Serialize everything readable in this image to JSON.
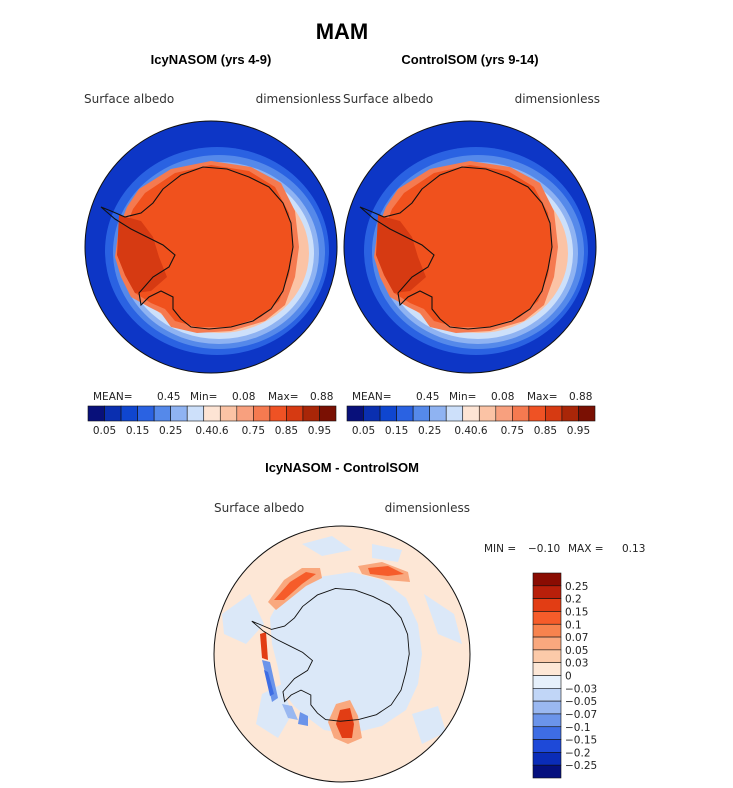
{
  "figure_title": "MAM",
  "chart_data": [
    {
      "type": "heatmap",
      "projection": "south-polar-stereographic",
      "title": "IcyNASOM (yrs 4-9)",
      "variable": "Surface albedo",
      "units": "dimensionless",
      "stats": {
        "mean_label": "MEAN=",
        "mean": "0.45",
        "min_label": "Min=",
        "min": "0.08",
        "max_label": "Max=",
        "max": "0.88"
      },
      "colorbar": {
        "orientation": "horizontal",
        "colors": [
          "#08107a",
          "#0a2fb0",
          "#0f46cf",
          "#2a62e2",
          "#5589ea",
          "#8fb3f2",
          "#cde0fa",
          "#fde4d4",
          "#fbc3a5",
          "#f8a07e",
          "#f57a50",
          "#ef5224",
          "#d63a12",
          "#a92608",
          "#7a1003"
        ],
        "tick_labels": [
          "0.05",
          "0.15",
          "0.25",
          "0.4",
          "0.6",
          "0.75",
          "0.85",
          "0.95"
        ]
      }
    },
    {
      "type": "heatmap",
      "projection": "south-polar-stereographic",
      "title": "ControlSOM (yrs 9-14)",
      "variable": "Surface albedo",
      "units": "dimensionless",
      "stats": {
        "mean_label": "MEAN=",
        "mean": "0.45",
        "min_label": "Min=",
        "min": "0.08",
        "max_label": "Max=",
        "max": "0.88"
      },
      "colorbar": {
        "orientation": "horizontal",
        "colors": [
          "#08107a",
          "#0a2fb0",
          "#0f46cf",
          "#2a62e2",
          "#5589ea",
          "#8fb3f2",
          "#cde0fa",
          "#fde4d4",
          "#fbc3a5",
          "#f8a07e",
          "#f57a50",
          "#ef5224",
          "#d63a12",
          "#a92608",
          "#7a1003"
        ],
        "tick_labels": [
          "0.05",
          "0.15",
          "0.25",
          "0.4",
          "0.6",
          "0.75",
          "0.85",
          "0.95"
        ]
      }
    },
    {
      "type": "heatmap",
      "projection": "south-polar-stereographic",
      "title": "IcyNASOM - ControlSOM",
      "variable": "Surface albedo",
      "units": "dimensionless",
      "stats": {
        "min_label": "MIN =",
        "min": "−0.10",
        "max_label": "MAX =",
        "max": "0.13"
      },
      "colorbar": {
        "orientation": "vertical",
        "colors": [
          "#8a0c02",
          "#b81f0a",
          "#e23d14",
          "#f65c2a",
          "#f7834e",
          "#f9a87e",
          "#fccaa9",
          "#fde7d6",
          "#e6f0fb",
          "#c1d6f7",
          "#9ab8f1",
          "#6b94ea",
          "#3e6de4",
          "#1e49d8",
          "#0a2cb8",
          "#05107e"
        ],
        "tick_labels": [
          "0.25",
          "0.2",
          "0.15",
          "0.1",
          "0.07",
          "0.05",
          "0.03",
          "0",
          "−0.03",
          "−0.05",
          "−0.07",
          "−0.1",
          "−0.15",
          "−0.2",
          "−0.25"
        ]
      }
    }
  ]
}
